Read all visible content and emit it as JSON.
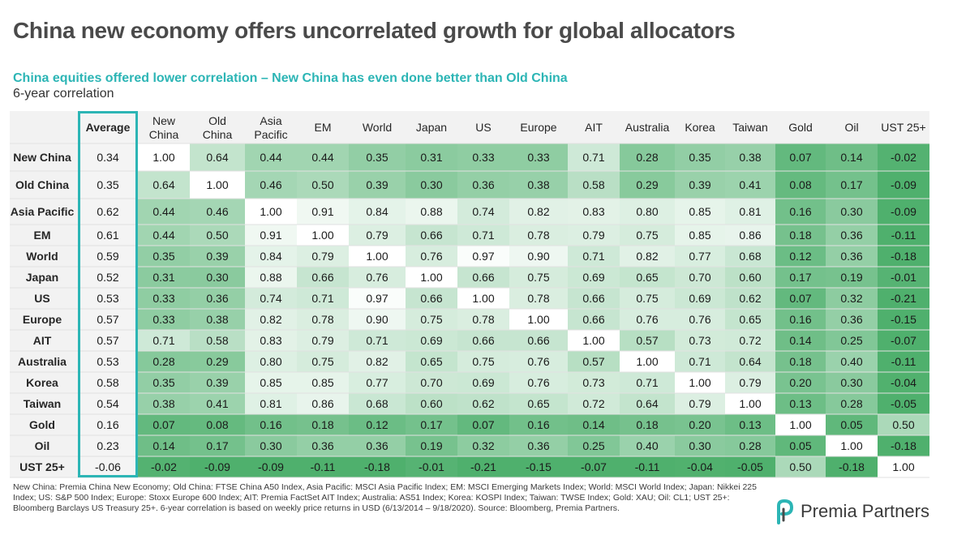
{
  "header": {
    "title": "China new economy offers uncorrelated growth for global allocators",
    "subtitle": "China equities offered lower correlation – New China has even done better than Old China",
    "caption": "6-year correlation"
  },
  "colors": {
    "accent": "#2cb5b5",
    "heat_high": "#4fb06d",
    "heat_low": "#ffffff"
  },
  "chart_data": {
    "type": "heatmap",
    "title": "China equities offered lower correlation – New China has even done better than Old China",
    "subtitle": "6-year correlation",
    "average_label": "Average",
    "columns": [
      "New China",
      "Old China",
      "Asia Pacific",
      "EM",
      "World",
      "Japan",
      "US",
      "Europe",
      "AIT",
      "Australia",
      "Korea",
      "Taiwan",
      "Gold",
      "Oil",
      "UST 25+"
    ],
    "rows": [
      "New China",
      "Old China",
      "Asia Pacific",
      "EM",
      "World",
      "Japan",
      "US",
      "Europe",
      "AIT",
      "Australia",
      "Korea",
      "Taiwan",
      "Gold",
      "Oil",
      "UST 25+"
    ],
    "averages": [
      0.34,
      0.35,
      0.62,
      0.61,
      0.59,
      0.52,
      0.53,
      0.57,
      0.57,
      0.53,
      0.58,
      0.54,
      0.16,
      0.23,
      -0.06
    ],
    "values": [
      [
        1.0,
        0.64,
        0.44,
        0.44,
        0.35,
        0.31,
        0.33,
        0.33,
        0.71,
        0.28,
        0.35,
        0.38,
        0.07,
        0.14,
        -0.02
      ],
      [
        0.64,
        1.0,
        0.46,
        0.5,
        0.39,
        0.3,
        0.36,
        0.38,
        0.58,
        0.29,
        0.39,
        0.41,
        0.08,
        0.17,
        -0.09
      ],
      [
        0.44,
        0.46,
        1.0,
        0.91,
        0.84,
        0.88,
        0.74,
        0.82,
        0.83,
        0.8,
        0.85,
        0.81,
        0.16,
        0.3,
        -0.09
      ],
      [
        0.44,
        0.5,
        0.91,
        1.0,
        0.79,
        0.66,
        0.71,
        0.78,
        0.79,
        0.75,
        0.85,
        0.86,
        0.18,
        0.36,
        -0.11
      ],
      [
        0.35,
        0.39,
        0.84,
        0.79,
        1.0,
        0.76,
        0.97,
        0.9,
        0.71,
        0.82,
        0.77,
        0.68,
        0.12,
        0.36,
        -0.18
      ],
      [
        0.31,
        0.3,
        0.88,
        0.66,
        0.76,
        1.0,
        0.66,
        0.75,
        0.69,
        0.65,
        0.7,
        0.6,
        0.17,
        0.19,
        -0.01
      ],
      [
        0.33,
        0.36,
        0.74,
        0.71,
        0.97,
        0.66,
        1.0,
        0.78,
        0.66,
        0.75,
        0.69,
        0.62,
        0.07,
        0.32,
        -0.21
      ],
      [
        0.33,
        0.38,
        0.82,
        0.78,
        0.9,
        0.75,
        0.78,
        1.0,
        0.66,
        0.76,
        0.76,
        0.65,
        0.16,
        0.36,
        -0.15
      ],
      [
        0.71,
        0.58,
        0.83,
        0.79,
        0.71,
        0.69,
        0.66,
        0.66,
        1.0,
        0.57,
        0.73,
        0.72,
        0.14,
        0.25,
        -0.07
      ],
      [
        0.28,
        0.29,
        0.8,
        0.75,
        0.82,
        0.65,
        0.75,
        0.76,
        0.57,
        1.0,
        0.71,
        0.64,
        0.18,
        0.4,
        -0.11
      ],
      [
        0.35,
        0.39,
        0.85,
        0.85,
        0.77,
        0.7,
        0.69,
        0.76,
        0.73,
        0.71,
        1.0,
        0.79,
        0.2,
        0.3,
        -0.04
      ],
      [
        0.38,
        0.41,
        0.81,
        0.86,
        0.68,
        0.6,
        0.62,
        0.65,
        0.72,
        0.64,
        0.79,
        1.0,
        0.13,
        0.28,
        -0.05
      ],
      [
        0.07,
        0.08,
        0.16,
        0.18,
        0.12,
        0.17,
        0.07,
        0.16,
        0.14,
        0.18,
        0.2,
        0.13,
        1.0,
        0.05,
        0.5
      ],
      [
        0.14,
        0.17,
        0.3,
        0.36,
        0.36,
        0.19,
        0.32,
        0.36,
        0.25,
        0.4,
        0.3,
        0.28,
        0.05,
        1.0,
        -0.18
      ],
      [
        -0.02,
        -0.09,
        -0.09,
        -0.11,
        -0.18,
        -0.01,
        -0.21,
        -0.15,
        -0.07,
        -0.11,
        -0.04,
        -0.05,
        0.5,
        -0.18,
        1.0
      ]
    ]
  },
  "footnote": "New China: Premia China New Economy; Old China: FTSE China A50 Index, Asia Pacific: MSCI Asia Pacific Index; EM: MSCI Emerging Markets Index; World: MSCI World Index; Japan: Nikkei 225 Index; US: S&P 500 Index; Europe: Stoxx Europe 600 Index; AIT: Premia FactSet AIT Index; Australia: AS51 Index; Korea: KOSPI Index; Taiwan: TWSE Index; Gold: XAU; Oil: CL1; UST 25+: Bloomberg Barclays US Treasury 25+. 6-year correlation is based on weekly price returns in USD (6/13/2014 – 9/18/2020). Source: Bloomberg, Premia Partners.",
  "logo": {
    "icon": "premia-p-icon",
    "text": "Premia Partners"
  }
}
